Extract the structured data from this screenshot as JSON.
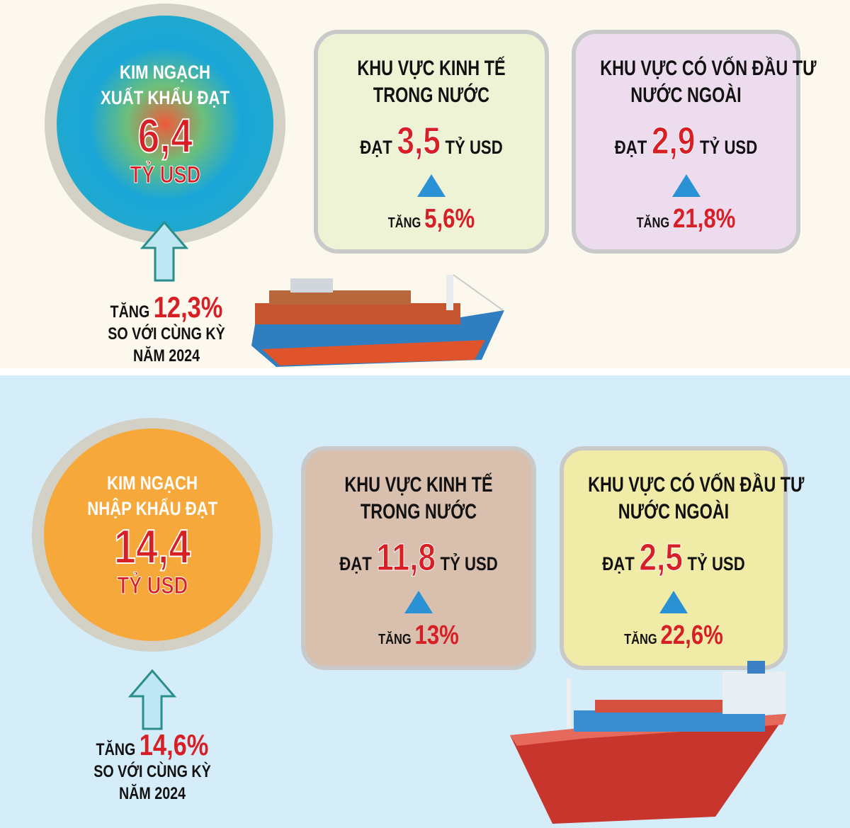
{
  "export": {
    "circle": {
      "line1": "KIM NGẠCH",
      "line2": "XUẤT KHẨU ĐẠT",
      "value": "6,4",
      "unit": "TỶ USD"
    },
    "growth": {
      "prefix": "TĂNG",
      "value": "12,3%",
      "line2": "SO VỚI CÙNG KỲ",
      "line3": "NĂM 2024"
    },
    "boxes": [
      {
        "title1": "KHU VỰC KINH TẾ",
        "title2": "TRONG NƯỚC",
        "prefix": "ĐẠT",
        "value": "3,5",
        "unit": "TỶ USD",
        "inc_label": "TĂNG",
        "inc_value": "5,6%",
        "bg": "#eef3d6"
      },
      {
        "title1": "KHU VỰC CÓ VỐN ĐẦU TƯ",
        "title2": "NƯỚC NGOÀI",
        "prefix": "ĐẠT",
        "value": "2,9",
        "unit": "TỶ USD",
        "inc_label": "TĂNG",
        "inc_value": "21,8%",
        "bg": "#ecdcee"
      }
    ]
  },
  "import": {
    "circle": {
      "line1": "KIM NGẠCH",
      "line2": "NHẬP KHẨU ĐẠT",
      "value": "14,4",
      "unit": "TỶ USD"
    },
    "growth": {
      "prefix": "TĂNG",
      "value": "14,6%",
      "line2": "SO VỚI CÙNG KỲ",
      "line3": "NĂM 2024"
    },
    "boxes": [
      {
        "title1": "KHU VỰC KINH TẾ",
        "title2": "TRONG NƯỚC",
        "prefix": "ĐẠT",
        "value": "11,8",
        "unit": "TỶ USD",
        "inc_label": "TĂNG",
        "inc_value": "13%",
        "bg": "#d9bfae"
      },
      {
        "title1": "KHU VỰC CÓ VỐN ĐẦU TƯ",
        "title2": "NƯỚC NGOÀI",
        "prefix": "ĐẠT",
        "value": "2,5",
        "unit": "TỶ USD",
        "inc_label": "TĂNG",
        "inc_value": "22,6%",
        "bg": "#f0eca8"
      }
    ]
  },
  "icons": {
    "arrow": "up-arrow-icon",
    "triangle": "up-triangle-icon",
    "ship": "container-ship-image"
  }
}
